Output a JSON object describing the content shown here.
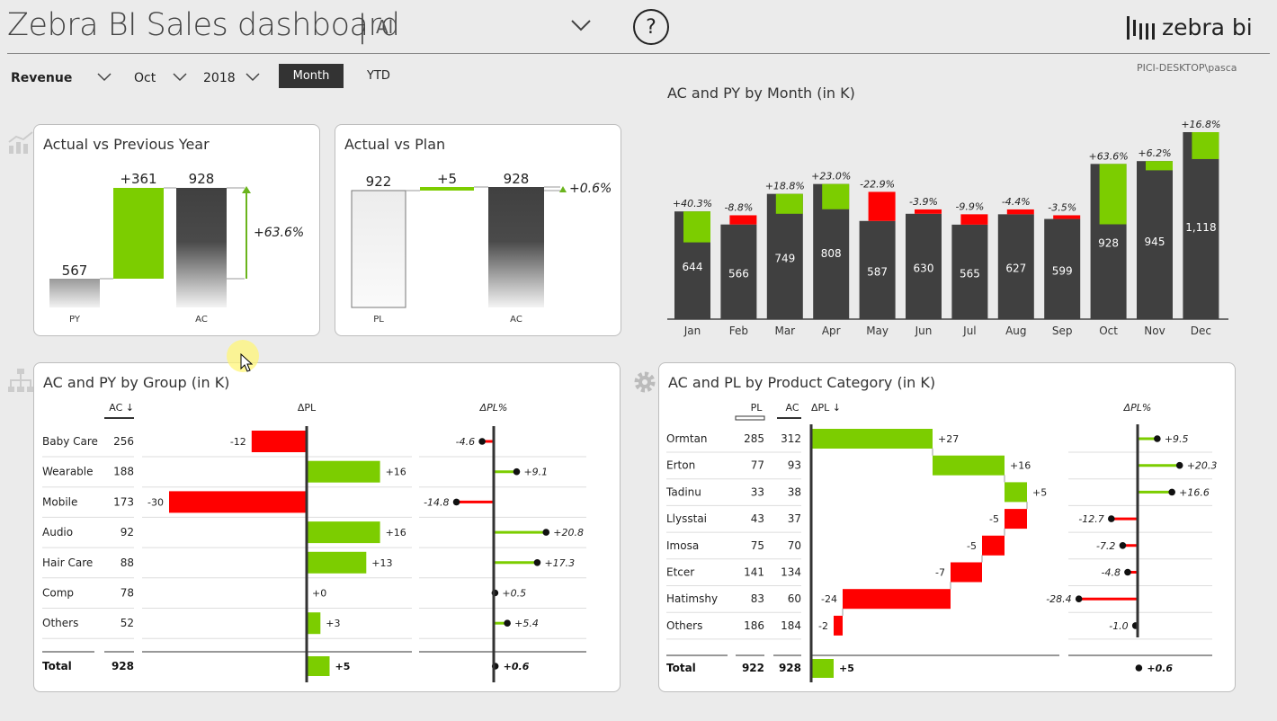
{
  "header": {
    "title": "Zebra BI Sales dashboard",
    "separator": "|",
    "filter_value": "All",
    "help_symbol": "?",
    "logo_text": "zebra bi",
    "user": "PICI-DESKTOP\\pasca"
  },
  "toolbar": {
    "measure": "Revenue",
    "month": "Oct",
    "year": "2018",
    "month_button": "Month",
    "ytd_button": "YTD"
  },
  "colors": {
    "positive": "#7ccd00",
    "negative": "#ff0000",
    "actual": "#404040",
    "accent_bar": "#6ab41c"
  },
  "ac_vs_py": {
    "title": "Actual vs Previous Year",
    "py_value": "567",
    "delta_value": "+361",
    "ac_value": "928",
    "delta_pct": "+63.6%",
    "py_label": "PY",
    "ac_label": "AC"
  },
  "ac_vs_pl": {
    "title": "Actual vs Plan",
    "pl_value": "922",
    "delta_value": "+5",
    "ac_value": "928",
    "delta_pct": "+0.6%",
    "pl_label": "PL",
    "ac_label": "AC"
  },
  "chart_data": [
    {
      "type": "bar",
      "title": "AC and PY by Month (in K)",
      "categories": [
        "Jan",
        "Feb",
        "Mar",
        "Apr",
        "May",
        "Jun",
        "Jul",
        "Aug",
        "Sep",
        "Oct",
        "Nov",
        "Dec"
      ],
      "series": [
        {
          "name": "AC",
          "values": [
            644,
            566,
            749,
            808,
            587,
            630,
            565,
            627,
            599,
            928,
            945,
            1118
          ]
        },
        {
          "name": "PY",
          "values": [
            459,
            621,
            630,
            657,
            761,
            656,
            627,
            656,
            621,
            567,
            890,
            957
          ]
        }
      ],
      "labels": [
        "644",
        "566",
        "749",
        "808",
        "587",
        "630",
        "565",
        "627",
        "599",
        "928",
        "945",
        "1,118"
      ],
      "delta_pct": [
        "+40.3%",
        "-8.8%",
        "+18.8%",
        "+23.0%",
        "-22.9%",
        "-3.9%",
        "-9.9%",
        "-4.4%",
        "-3.5%",
        "+63.6%",
        "+6.2%",
        "+16.8%"
      ]
    },
    {
      "type": "table",
      "title": "AC and PY by Group (in K)",
      "headers": {
        "ac": "AC ↓",
        "dpl": "ΔPL",
        "dplpct": "ΔPL%"
      },
      "rows": [
        {
          "name": "Baby Care",
          "ac": "256",
          "dpl": -12,
          "dpl_label": "-12",
          "pct": -4.6,
          "pct_label": "-4.6"
        },
        {
          "name": "Wearable",
          "ac": "188",
          "dpl": 16,
          "dpl_label": "+16",
          "pct": 9.1,
          "pct_label": "+9.1"
        },
        {
          "name": "Mobile",
          "ac": "173",
          "dpl": -30,
          "dpl_label": "-30",
          "pct": -14.8,
          "pct_label": "-14.8"
        },
        {
          "name": "Audio",
          "ac": "92",
          "dpl": 16,
          "dpl_label": "+16",
          "pct": 20.8,
          "pct_label": "+20.8"
        },
        {
          "name": "Hair Care",
          "ac": "88",
          "dpl": 13,
          "dpl_label": "+13",
          "pct": 17.3,
          "pct_label": "+17.3"
        },
        {
          "name": "Comp",
          "ac": "78",
          "dpl": 0,
          "dpl_label": "+0",
          "pct": 0.5,
          "pct_label": "+0.5"
        },
        {
          "name": "Others",
          "ac": "52",
          "dpl": 3,
          "dpl_label": "+3",
          "pct": 5.4,
          "pct_label": "+5.4"
        }
      ],
      "total": {
        "name": "Total",
        "ac": "928",
        "dpl": 5,
        "dpl_label": "+5",
        "pct": 0.6,
        "pct_label": "+0.6"
      }
    },
    {
      "type": "table",
      "title": "AC and PL by Product Category (in K)",
      "headers": {
        "pl": "PL",
        "ac": "AC",
        "dpl": "ΔPL ↓",
        "dplpct": "ΔPL%"
      },
      "rows": [
        {
          "name": "Ormtan",
          "pl": "285",
          "ac": "312",
          "dpl": 27,
          "dpl_label": "+27",
          "pct": 9.5,
          "pct_label": "+9.5"
        },
        {
          "name": "Erton",
          "pl": "77",
          "ac": "93",
          "dpl": 16,
          "dpl_label": "+16",
          "pct": 20.3,
          "pct_label": "+20.3"
        },
        {
          "name": "Tadinu",
          "pl": "33",
          "ac": "38",
          "dpl": 5,
          "dpl_label": "+5",
          "pct": 16.6,
          "pct_label": "+16.6"
        },
        {
          "name": "Llysstai",
          "pl": "43",
          "ac": "37",
          "dpl": -5,
          "dpl_label": "-5",
          "pct": -12.7,
          "pct_label": "-12.7"
        },
        {
          "name": "Imosa",
          "pl": "75",
          "ac": "70",
          "dpl": -5,
          "dpl_label": "-5",
          "pct": -7.2,
          "pct_label": "-7.2"
        },
        {
          "name": "Etcer",
          "pl": "141",
          "ac": "134",
          "dpl": -7,
          "dpl_label": "-7",
          "pct": -4.8,
          "pct_label": "-4.8"
        },
        {
          "name": "Hatimshy",
          "pl": "83",
          "ac": "60",
          "dpl": -24,
          "dpl_label": "-24",
          "pct": -28.4,
          "pct_label": "-28.4"
        },
        {
          "name": "Others",
          "pl": "186",
          "ac": "184",
          "dpl": -2,
          "dpl_label": "-2",
          "pct": -1.0,
          "pct_label": "-1.0"
        }
      ],
      "total": {
        "name": "Total",
        "pl": "922",
        "ac": "928",
        "dpl": 5,
        "dpl_label": "+5",
        "pct": 0.6,
        "pct_label": "+0.6"
      }
    }
  ]
}
